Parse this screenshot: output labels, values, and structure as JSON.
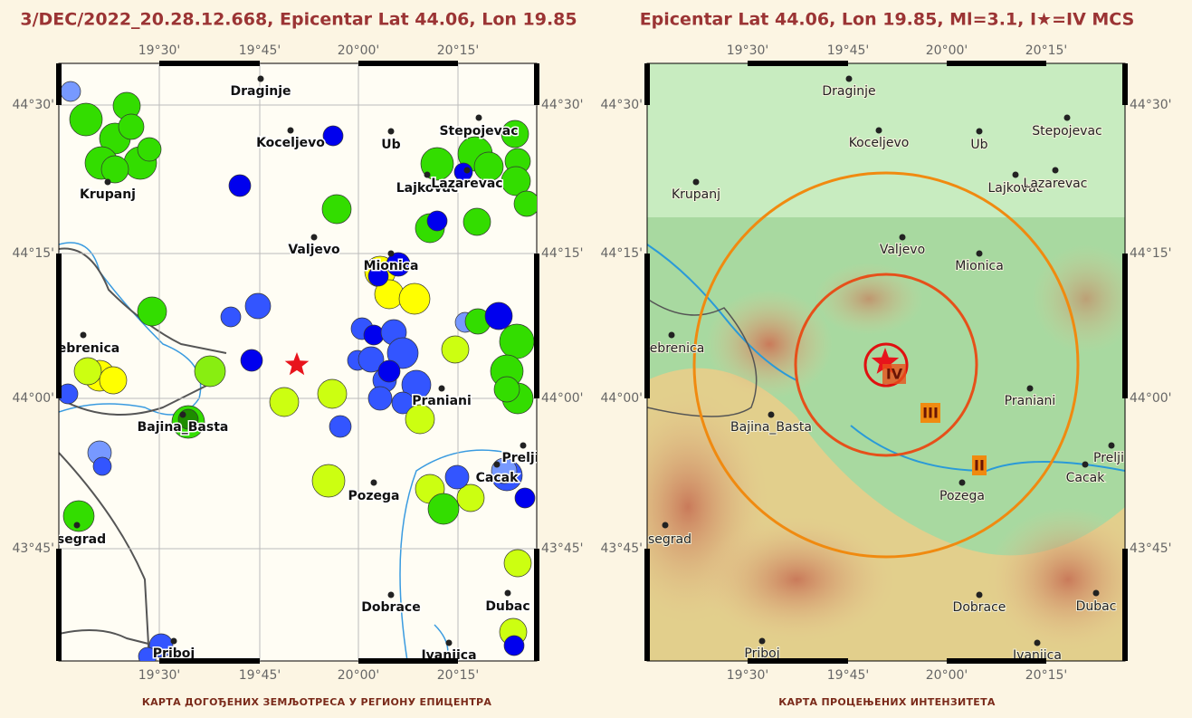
{
  "left_map": {
    "title": "3/DEC/2022_20.28.12.668, Epicentar Lat 44.06, Lon 19.85",
    "caption": "КАРТА ДОГОЂЕНИХ ЗЕМЉОТРЕСА У РЕГИОНУ ЕПИЦЕНТРА"
  },
  "right_map": {
    "title": "Epicentar Lat 44.06, Lon 19.85, Ml=3.1, I★=IV MCS",
    "caption": "КАРТА ПРОЦЕЊЕНИХ ИНТЕНЗИТЕТА",
    "intensity_labels": [
      "IV",
      "III",
      "II"
    ]
  },
  "lon_labels": [
    "19°30'",
    "19°45'",
    "20°00'",
    "20°15'"
  ],
  "lat_labels": [
    "44°30'",
    "44°15'",
    "44°00'",
    "43°45'"
  ],
  "places": [
    "Draginje",
    "Koceljevo",
    "Ub",
    "Stepojevac",
    "Krupanj",
    "Lajkovac",
    "Lazarevac",
    "Valjevo",
    "Mionica",
    "ebrenica",
    "Praniani",
    "Bajina_Basta",
    "Prelji",
    "Cacak",
    "Pozega",
    "segrad",
    "Dobrace",
    "Dubac",
    "Priboj",
    "Ivanjica"
  ]
}
